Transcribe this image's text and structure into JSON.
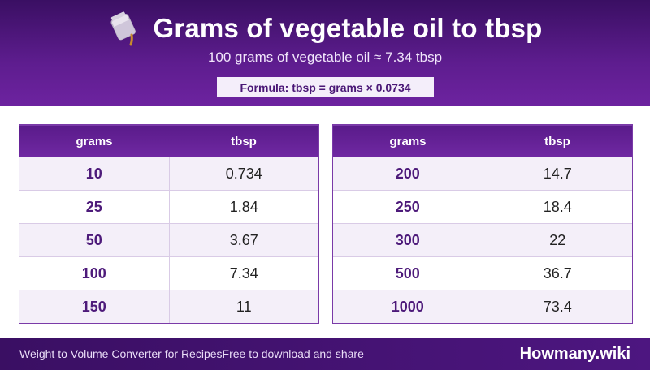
{
  "header": {
    "title": "Grams of vegetable oil to tbsp",
    "subtitle": "100 grams of vegetable oil ≈ 7.34 tbsp",
    "formula": "Formula: tbsp = grams × 0.0734",
    "icon": "oil-pouring-icon"
  },
  "tables": [
    {
      "columns": [
        "grams",
        "tbsp"
      ],
      "rows": [
        [
          "10",
          "0.734"
        ],
        [
          "25",
          "1.84"
        ],
        [
          "50",
          "3.67"
        ],
        [
          "100",
          "7.34"
        ],
        [
          "150",
          "11"
        ]
      ]
    },
    {
      "columns": [
        "grams",
        "tbsp"
      ],
      "rows": [
        [
          "200",
          "14.7"
        ],
        [
          "250",
          "18.4"
        ],
        [
          "300",
          "22"
        ],
        [
          "500",
          "36.7"
        ],
        [
          "1000",
          "73.4"
        ]
      ]
    }
  ],
  "footer": {
    "left_text": "Weight to Volume Converter for RecipesFree to download and share",
    "brand": "Howmany.wiki"
  },
  "colors": {
    "header_bg": "#5e1d8f",
    "accent_text": "#4d1a7a",
    "row_alt": "#f4eff9"
  }
}
